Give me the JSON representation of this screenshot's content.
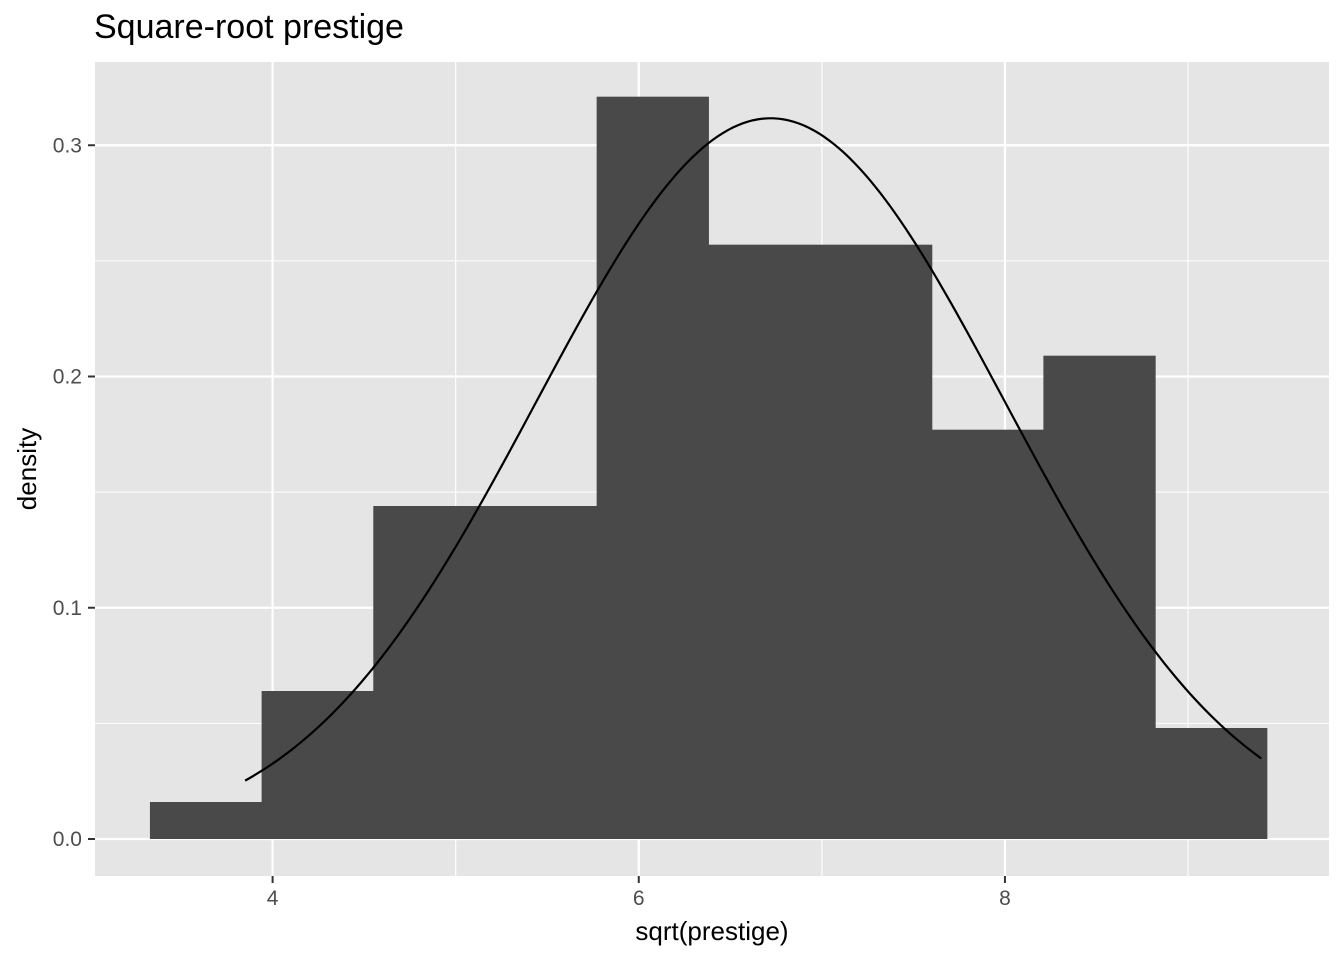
{
  "chart_data": {
    "type": "bar",
    "title": "Square-root prestige",
    "xlabel": "sqrt(prestige)",
    "ylabel": "density",
    "xlim": [
      3.03,
      9.77
    ],
    "ylim": [
      -0.016,
      0.336
    ],
    "x_ticks": [
      4,
      6,
      8
    ],
    "x_tick_labels": [
      "4",
      "6",
      "8"
    ],
    "y_ticks": [
      0.0,
      0.1,
      0.2,
      0.3
    ],
    "y_tick_labels": [
      "0.0",
      "0.1",
      "0.2",
      "0.3"
    ],
    "grid": true,
    "legend": "none",
    "bin_width": 0.61,
    "bins": [
      {
        "x0": 3.33,
        "x1": 3.94,
        "density": 0.016
      },
      {
        "x0": 3.94,
        "x1": 4.55,
        "density": 0.064
      },
      {
        "x0": 4.55,
        "x1": 5.16,
        "density": 0.144
      },
      {
        "x0": 5.16,
        "x1": 5.77,
        "density": 0.144
      },
      {
        "x0": 5.77,
        "x1": 6.38,
        "density": 0.321
      },
      {
        "x0": 6.38,
        "x1": 6.99,
        "density": 0.257
      },
      {
        "x0": 6.99,
        "x1": 7.6,
        "density": 0.257
      },
      {
        "x0": 7.6,
        "x1": 8.21,
        "density": 0.177
      },
      {
        "x0": 8.21,
        "x1": 8.82,
        "density": 0.209
      },
      {
        "x0": 8.82,
        "x1": 9.43,
        "density": 0.048
      }
    ],
    "normal_curve": {
      "mean": 6.72,
      "sd": 1.28,
      "x_range": [
        3.85,
        9.4
      ]
    },
    "colors": {
      "panel": "#e5e5e5",
      "grid": "#ffffff",
      "bar": "#494949",
      "curve": "#000000",
      "tick": "#333333"
    }
  }
}
